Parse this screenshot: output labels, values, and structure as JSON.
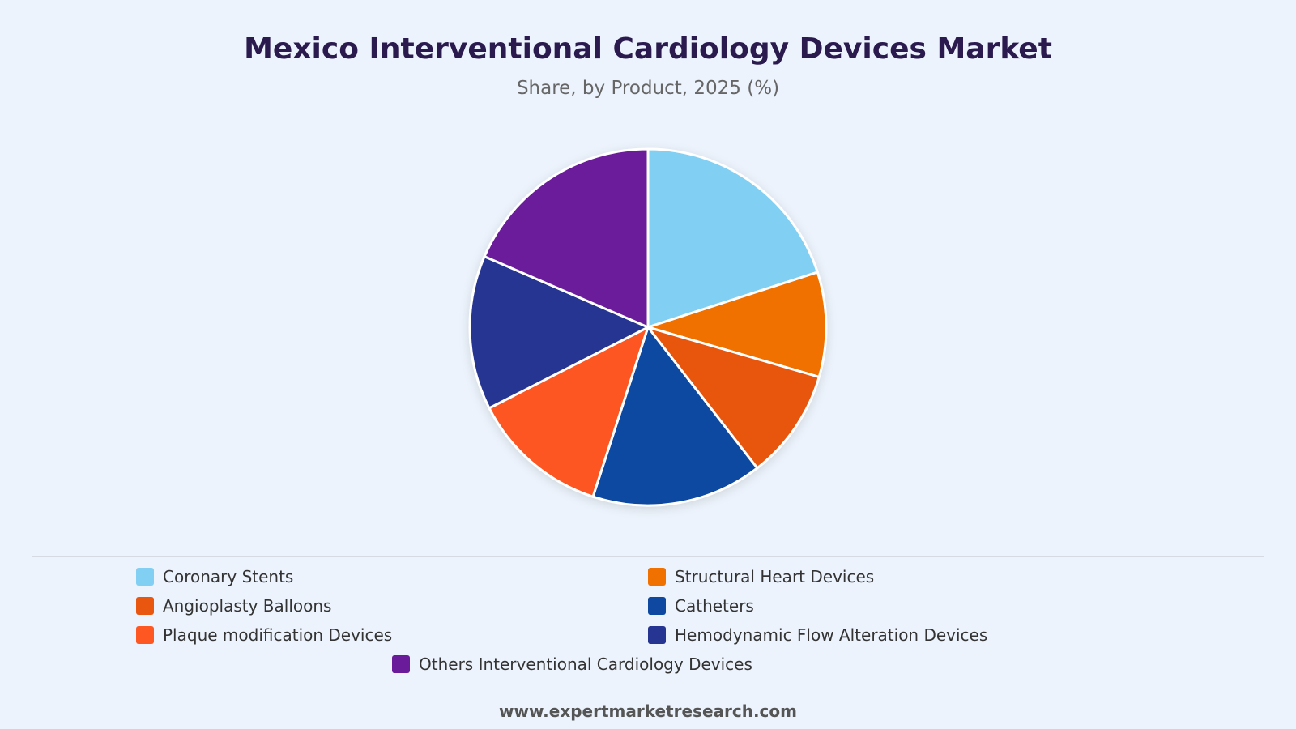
{
  "title": "Mexico Interventional Cardiology Devices Market",
  "subtitle": "Share, by Product, 2025 (%)",
  "footer": "www.expertmarketresearch.com",
  "chart_data": {
    "type": "pie",
    "title": "Mexico Interventional Cardiology Devices Market",
    "subtitle": "Share, by Product, 2025 (%)",
    "legend_position": "bottom",
    "slices": [
      {
        "label": "Coronary Stents",
        "value": 20,
        "color": "#81cff3"
      },
      {
        "label": "Structural Heart Devices",
        "value": 9.5,
        "color": "#f07000"
      },
      {
        "label": "Angioplasty Balloons",
        "value": 10,
        "color": "#e85610"
      },
      {
        "label": "Catheters",
        "value": 15.5,
        "color": "#0e48a0"
      },
      {
        "label": "Plaque modification Devices",
        "value": 12.5,
        "color": "#fe5722"
      },
      {
        "label": "Hemodynamic Flow Alteration Devices",
        "value": 14,
        "color": "#263591"
      },
      {
        "label": "Others Interventional Cardiology Devices",
        "value": 18.5,
        "color": "#6a1b9a"
      }
    ]
  }
}
